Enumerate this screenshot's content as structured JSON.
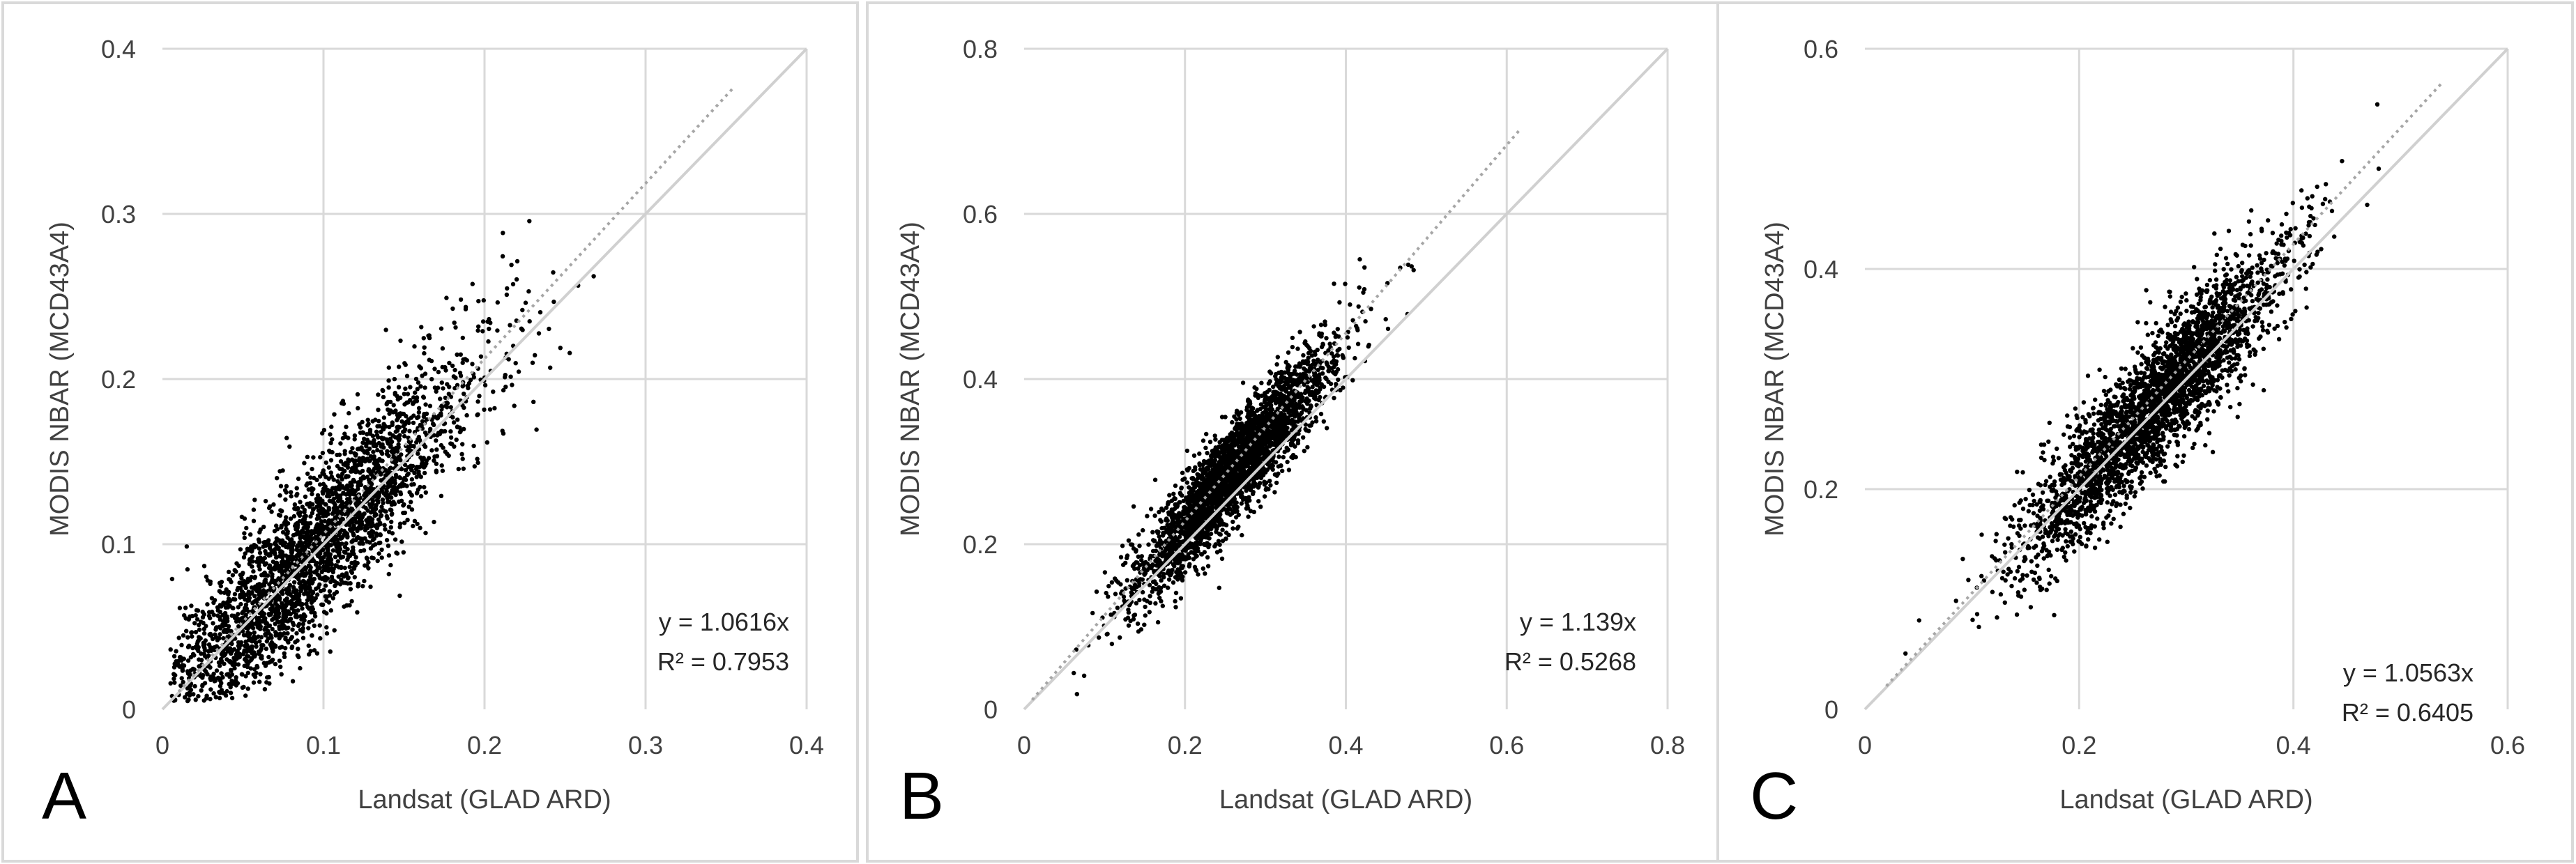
{
  "chart_data": [
    {
      "type": "scatter",
      "panel_label": "A",
      "xlabel": "Landsat (GLAD ARD)",
      "ylabel": "MODIS NBAR (MCD43A4)",
      "xlim": [
        0,
        0.4
      ],
      "ylim": [
        0,
        0.4
      ],
      "xticks": [
        0,
        0.1,
        0.2,
        0.3,
        0.4
      ],
      "yticks": [
        0,
        0.1,
        0.2,
        0.3,
        0.4
      ],
      "xtick_labels": [
        "0",
        "0.1",
        "0.2",
        "0.3",
        "0.4"
      ],
      "ytick_labels": [
        "0",
        "0.1",
        "0.2",
        "0.3",
        "0.4"
      ],
      "grid": true,
      "reference_line": "1:1",
      "trendline": {
        "slope": 1.0616,
        "x_range": [
          0.01,
          0.355
        ],
        "style": "dotted"
      },
      "equation": "y = 1.0616x",
      "r_squared": "R² = 0.7953",
      "point_cloud": {
        "approx_count": 6000,
        "center": [
          0.09,
          0.09
        ],
        "spread": 0.06
      }
    },
    {
      "type": "scatter",
      "panel_label": "B",
      "xlabel": "Landsat (GLAD ARD)",
      "ylabel": "MODIS NBAR (MCD43A4)",
      "xlim": [
        0,
        0.8
      ],
      "ylim": [
        0,
        0.8
      ],
      "xticks": [
        0,
        0.2,
        0.4,
        0.6,
        0.8
      ],
      "yticks": [
        0,
        0.2,
        0.4,
        0.6,
        0.8
      ],
      "xtick_labels": [
        "0",
        "0.2",
        "0.4",
        "0.6",
        "0.8"
      ],
      "ytick_labels": [
        "0",
        "0.2",
        "0.4",
        "0.6",
        "0.8"
      ],
      "grid": true,
      "reference_line": "1:1",
      "trendline": {
        "slope": 1.139,
        "x_range": [
          0.01,
          0.615
        ],
        "style": "dotted"
      },
      "equation": "y = 1.139x",
      "r_squared": "R² = 0.5268",
      "point_cloud": {
        "approx_count": 6000,
        "center": [
          0.26,
          0.3
        ],
        "spread": 0.07
      }
    },
    {
      "type": "scatter",
      "panel_label": "C",
      "xlabel": "Landsat (GLAD ARD)",
      "ylabel": "MODIS NBAR (MCD43A4)",
      "xlim": [
        0,
        0.6
      ],
      "ylim": [
        0,
        0.6
      ],
      "xticks": [
        0,
        0.2,
        0.4,
        0.6
      ],
      "yticks": [
        0,
        0.2,
        0.4,
        0.6
      ],
      "xtick_labels": [
        "0",
        "0.2",
        "0.4",
        "0.6"
      ],
      "ytick_labels": [
        "0",
        "0.2",
        "0.4",
        "0.6"
      ],
      "grid": true,
      "reference_line": "1:1",
      "trendline": {
        "slope": 1.0563,
        "x_range": [
          0.02,
          0.54
        ],
        "style": "dotted"
      },
      "equation": "y = 1.0563x",
      "r_squared": "R² = 0.6405",
      "point_cloud": {
        "approx_count": 6000,
        "center": [
          0.27,
          0.28
        ],
        "spread": 0.07
      }
    }
  ]
}
